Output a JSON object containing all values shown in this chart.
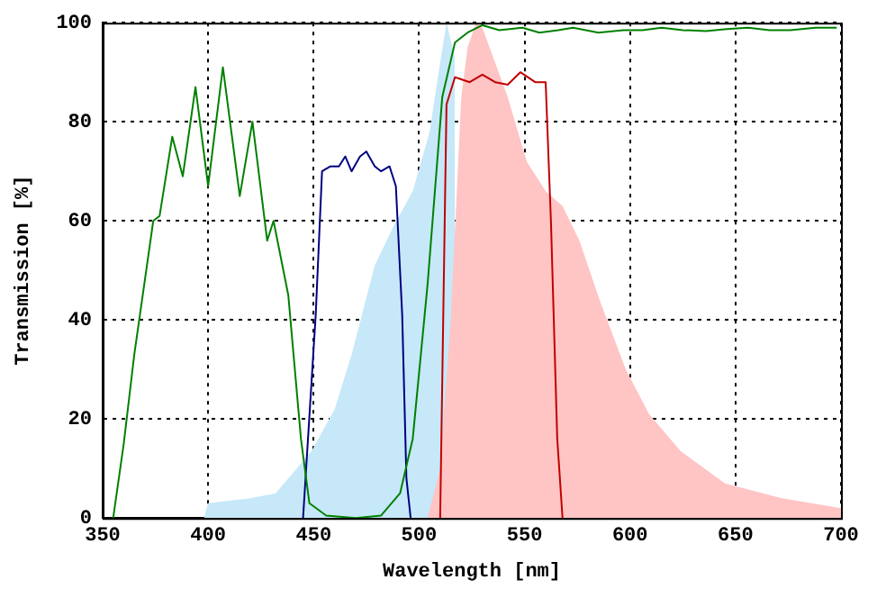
{
  "chart_data": {
    "type": "line",
    "xlabel": "Wavelength [nm]",
    "ylabel": "Transmission [%]",
    "xlim": [
      350,
      700
    ],
    "xticks": [
      350,
      400,
      450,
      500,
      550,
      600,
      650,
      700
    ],
    "ylim": [
      0,
      100
    ],
    "yticks": [
      0,
      20,
      40,
      60,
      80,
      100
    ],
    "grid": true,
    "legend": false,
    "line_style": "solid",
    "marker": "none",
    "series": [
      {
        "type": "area",
        "color": "#c6e8f8",
        "x": [
          398,
          400,
          420,
          432,
          449,
          460,
          468,
          479,
          488,
          497,
          505,
          510,
          513,
          517
        ],
        "values": [
          0,
          3,
          4,
          5,
          13.5,
          22,
          33,
          51,
          59,
          66,
          78,
          92,
          100,
          93
        ]
      },
      {
        "type": "area",
        "color": "#ffc4c4",
        "x": [
          504,
          510,
          515,
          520,
          523,
          527,
          530,
          536,
          542,
          551,
          560,
          568,
          576,
          586,
          598,
          609,
          624,
          645,
          672,
          700
        ],
        "values": [
          0,
          10,
          40,
          85,
          95,
          100,
          99,
          92,
          85,
          72,
          66,
          63,
          56,
          43.5,
          30,
          21,
          13.5,
          7,
          4,
          2
        ]
      },
      {
        "type": "line",
        "color": "#008000",
        "x": [
          355,
          360,
          365,
          370,
          374,
          377,
          383,
          388,
          394,
          400,
          407,
          415,
          421,
          428,
          431,
          438,
          444,
          448,
          456,
          470,
          482,
          491,
          497,
          504,
          511,
          517,
          523,
          530,
          538,
          549,
          557,
          566,
          573,
          585,
          597,
          606,
          615,
          625,
          636,
          646,
          656,
          666,
          676,
          688,
          698
        ],
        "values": [
          0,
          15,
          33,
          48,
          60,
          61,
          77,
          69,
          87,
          67,
          91,
          65,
          80,
          56,
          60,
          45,
          16,
          3,
          0.5,
          0,
          0.5,
          5,
          16,
          47,
          85,
          96,
          98,
          99.5,
          98.5,
          99,
          98,
          98.5,
          99,
          98,
          98.5,
          98.5,
          99,
          98.5,
          98.3,
          98.7,
          99,
          98.5,
          98.5,
          99,
          99
        ]
      },
      {
        "type": "line",
        "color": "#000080",
        "x": [
          445,
          451,
          454,
          458,
          462,
          465,
          468,
          472,
          475,
          479,
          482,
          486,
          489,
          492,
          494,
          496
        ],
        "values": [
          0,
          41,
          70,
          71,
          71,
          73,
          70,
          73,
          74,
          71,
          70,
          71,
          67,
          41,
          8,
          0
        ]
      },
      {
        "type": "line",
        "color": "#c00000",
        "x": [
          510,
          513,
          517,
          524,
          530,
          536,
          542,
          548,
          555,
          560,
          562.5,
          565.5,
          568
        ],
        "values": [
          0,
          83.5,
          89,
          88,
          89.5,
          88,
          87.5,
          90,
          88,
          88,
          60,
          16,
          0
        ]
      }
    ]
  }
}
